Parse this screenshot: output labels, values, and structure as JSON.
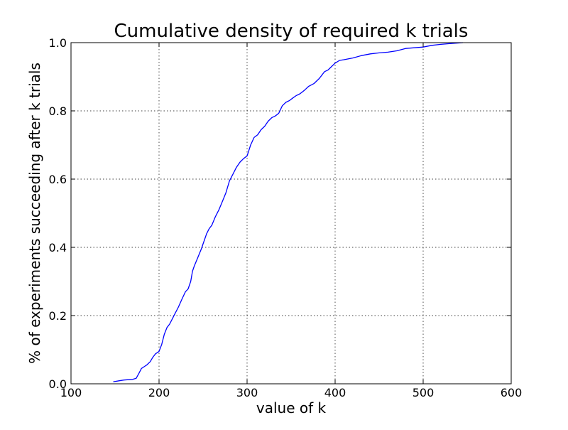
{
  "chart_data": {
    "type": "line",
    "title": "Cumulative density of required k trials",
    "xlabel": "value of k",
    "ylabel": "% of experiments succeeding after k trials",
    "xlim": [
      100,
      600
    ],
    "ylim": [
      0.0,
      1.0
    ],
    "xticks": [
      100,
      200,
      300,
      400,
      500,
      600
    ],
    "xtick_labels": [
      "100",
      "200",
      "300",
      "400",
      "500",
      "600"
    ],
    "yticks": [
      0.0,
      0.2,
      0.4,
      0.6,
      0.8,
      1.0
    ],
    "ytick_labels": [
      "0.0",
      "0.2",
      "0.4",
      "0.6",
      "0.8",
      "1.0"
    ],
    "grid": true,
    "series": [
      {
        "color": "#0000ff",
        "x": [
          148,
          155,
          160,
          165,
          170,
          174,
          177,
          180,
          183,
          186,
          190,
          193,
          196,
          200,
          203,
          206,
          209,
          212,
          215,
          218,
          222,
          226,
          230,
          233,
          236,
          238,
          240,
          244,
          248,
          252,
          254,
          257,
          260,
          264,
          268,
          272,
          276,
          280,
          284,
          288,
          292,
          296,
          300,
          304,
          308,
          312,
          316,
          320,
          324,
          328,
          332,
          336,
          340,
          344,
          348,
          352,
          356,
          360,
          365,
          370,
          376,
          382,
          388,
          392,
          396,
          400,
          405,
          410,
          420,
          430,
          440,
          450,
          460,
          470,
          480,
          490,
          500,
          510,
          520,
          530,
          540,
          545
        ],
        "y": [
          0.006,
          0.009,
          0.011,
          0.012,
          0.013,
          0.016,
          0.03,
          0.045,
          0.05,
          0.055,
          0.065,
          0.078,
          0.088,
          0.095,
          0.115,
          0.145,
          0.165,
          0.175,
          0.19,
          0.205,
          0.225,
          0.248,
          0.27,
          0.278,
          0.3,
          0.33,
          0.345,
          0.37,
          0.395,
          0.425,
          0.44,
          0.455,
          0.465,
          0.49,
          0.51,
          0.535,
          0.56,
          0.595,
          0.615,
          0.635,
          0.65,
          0.66,
          0.668,
          0.7,
          0.722,
          0.73,
          0.745,
          0.755,
          0.77,
          0.78,
          0.785,
          0.793,
          0.815,
          0.825,
          0.83,
          0.838,
          0.845,
          0.85,
          0.86,
          0.872,
          0.88,
          0.895,
          0.915,
          0.92,
          0.93,
          0.94,
          0.948,
          0.95,
          0.955,
          0.962,
          0.967,
          0.97,
          0.972,
          0.976,
          0.983,
          0.985,
          0.987,
          0.992,
          0.995,
          0.997,
          0.999,
          1.0
        ]
      }
    ]
  }
}
